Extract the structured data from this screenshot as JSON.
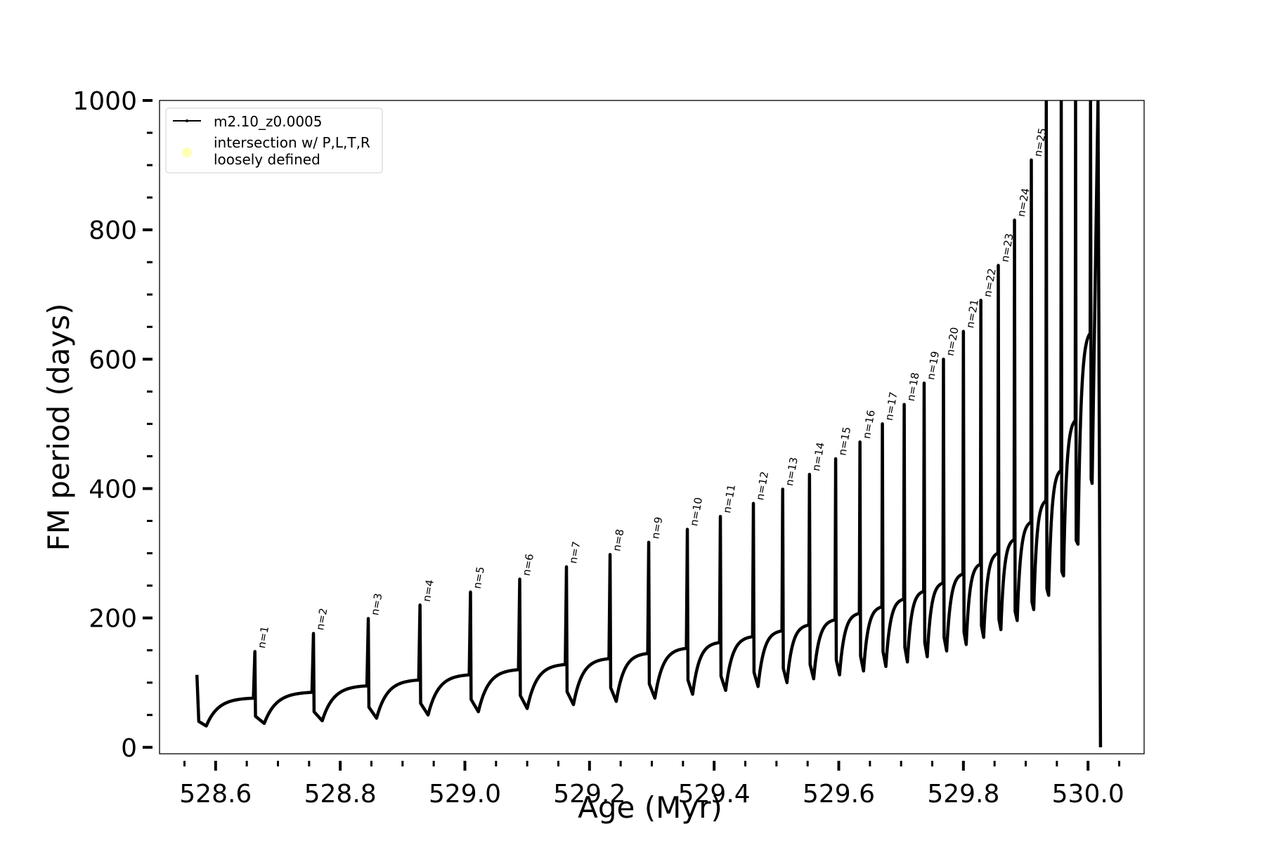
{
  "chart_data": {
    "type": "line",
    "title": "",
    "xlabel": "Age (Myr)",
    "ylabel": "FM period (days)",
    "xlim": [
      528.51,
      530.09
    ],
    "ylim": [
      -10,
      1000
    ],
    "xticks": [
      528.6,
      528.8,
      529.0,
      529.2,
      529.4,
      529.6,
      529.8,
      530.0
    ],
    "xtick_labels": [
      "528.6",
      "528.8",
      "529.0",
      "529.2",
      "529.4",
      "529.6",
      "529.8",
      "530.0"
    ],
    "yticks": [
      0,
      200,
      400,
      600,
      800,
      1000
    ],
    "ytick_labels": [
      "0",
      "200",
      "400",
      "600",
      "800",
      "1000"
    ],
    "xminor_step": 0.05,
    "yminor_step": 50,
    "grid": false,
    "legend_position": "top-left",
    "series": [
      {
        "name": "m2.10_z0.0005",
        "color": "#000000",
        "marker": "point",
        "start": {
          "age": 528.57,
          "period_high": 112,
          "period_low": 40,
          "min_period": 33,
          "min_age": 528.585
        },
        "pulses": [
          {
            "label": "n=1",
            "age": 528.663,
            "peak": 148,
            "trough": 48,
            "minimum": 37,
            "plateau": 76
          },
          {
            "label": "n=2",
            "age": 528.757,
            "peak": 176,
            "trough": 55,
            "minimum": 41,
            "plateau": 85
          },
          {
            "label": "n=3",
            "age": 528.845,
            "peak": 199,
            "trough": 62,
            "minimum": 45,
            "plateau": 95
          },
          {
            "label": "n=4",
            "age": 528.928,
            "peak": 220,
            "trough": 68,
            "minimum": 50,
            "plateau": 104
          },
          {
            "label": "n=5",
            "age": 529.009,
            "peak": 240,
            "trough": 74,
            "minimum": 55,
            "plateau": 112
          },
          {
            "label": "n=6",
            "age": 529.088,
            "peak": 260,
            "trough": 80,
            "minimum": 60,
            "plateau": 120
          },
          {
            "label": "n=7",
            "age": 529.163,
            "peak": 279,
            "trough": 86,
            "minimum": 66,
            "plateau": 128
          },
          {
            "label": "n=8",
            "age": 529.233,
            "peak": 298,
            "trough": 92,
            "minimum": 71,
            "plateau": 137
          },
          {
            "label": "n=9",
            "age": 529.295,
            "peak": 317,
            "trough": 98,
            "minimum": 76,
            "plateau": 145
          },
          {
            "label": "n=10",
            "age": 529.357,
            "peak": 337,
            "trough": 104,
            "minimum": 82,
            "plateau": 153
          },
          {
            "label": "n=11",
            "age": 529.41,
            "peak": 357,
            "trough": 110,
            "minimum": 88,
            "plateau": 162
          },
          {
            "label": "n=12",
            "age": 529.463,
            "peak": 377,
            "trough": 116,
            "minimum": 94,
            "plateau": 171
          },
          {
            "label": "n=13",
            "age": 529.51,
            "peak": 399,
            "trough": 122,
            "minimum": 100,
            "plateau": 180
          },
          {
            "label": "n=14",
            "age": 529.553,
            "peak": 422,
            "trough": 128,
            "minimum": 106,
            "plateau": 189
          },
          {
            "label": "n=15",
            "age": 529.595,
            "peak": 446,
            "trough": 135,
            "minimum": 112,
            "plateau": 197
          },
          {
            "label": "n=16",
            "age": 529.634,
            "peak": 472,
            "trough": 141,
            "minimum": 118,
            "plateau": 207
          },
          {
            "label": "n=17",
            "age": 529.67,
            "peak": 500,
            "trough": 148,
            "minimum": 125,
            "plateau": 217
          },
          {
            "label": "n=18",
            "age": 529.705,
            "peak": 530,
            "trough": 155,
            "minimum": 132,
            "plateau": 229
          },
          {
            "label": "n=19",
            "age": 529.737,
            "peak": 563,
            "trough": 162,
            "minimum": 140,
            "plateau": 241
          },
          {
            "label": "n=20",
            "age": 529.768,
            "peak": 600,
            "trough": 170,
            "minimum": 149,
            "plateau": 254
          },
          {
            "label": "n=21",
            "age": 529.8,
            "peak": 643,
            "trough": 178,
            "minimum": 159,
            "plateau": 268
          },
          {
            "label": "n=22",
            "age": 529.828,
            "peak": 691,
            "trough": 188,
            "minimum": 170,
            "plateau": 283
          },
          {
            "label": "n=23",
            "age": 529.856,
            "peak": 745,
            "trough": 198,
            "minimum": 182,
            "plateau": 300
          },
          {
            "label": "n=24",
            "age": 529.882,
            "peak": 815,
            "trough": 210,
            "minimum": 196,
            "plateau": 321
          },
          {
            "label": "n=25",
            "age": 529.909,
            "peak": 908,
            "trough": 225,
            "minimum": 213,
            "plateau": 348
          },
          {
            "label": "",
            "age": 529.933,
            "peak": 1000,
            "trough": 245,
            "minimum": 235,
            "plateau": 381
          },
          {
            "label": "",
            "age": 529.957,
            "peak": 1000,
            "trough": 272,
            "minimum": 265,
            "plateau": 428
          },
          {
            "label": "",
            "age": 529.98,
            "peak": 1000,
            "trough": 320,
            "minimum": 314,
            "plateau": 505
          },
          {
            "label": "",
            "age": 530.004,
            "peak": 1000,
            "trough": 415,
            "minimum": 408,
            "plateau": 640
          }
        ],
        "final": {
          "age": 530.02,
          "peak": 1000,
          "minimum": 0
        }
      },
      {
        "name": "intersection w/ P,L,T,R\nloosely defined",
        "legend_lines": [
          "intersection w/ P,L,T,R",
          "loosely defined"
        ],
        "color": "#ffffb3",
        "marker": "circle",
        "points": []
      }
    ]
  }
}
